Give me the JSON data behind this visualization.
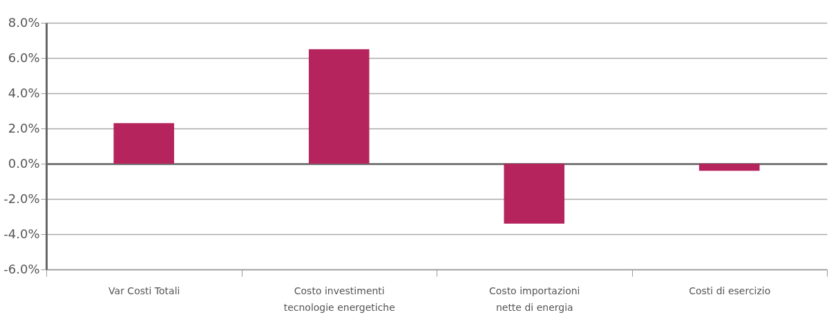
{
  "chart_data": {
    "type": "bar",
    "categories": [
      "Var Costi Totali",
      "Costo investimenti tecnologie energetiche",
      "Costo importazioni nette di energia",
      "Costi di esercizio"
    ],
    "values": [
      2.3,
      6.5,
      -3.4,
      -0.4
    ],
    "color": "#b5245c",
    "ylim": [
      -6,
      8
    ],
    "yticks": [
      {
        "value": -6,
        "label": "-6.0%"
      },
      {
        "value": -4,
        "label": "-4.0%"
      },
      {
        "value": -2,
        "label": "-2.0%"
      },
      {
        "value": 0,
        "label": "0.0%"
      },
      {
        "value": 2,
        "label": "2.0%"
      },
      {
        "value": 4,
        "label": "4.0%"
      },
      {
        "value": 6,
        "label": "6.0%"
      },
      {
        "value": 8,
        "label": "8.0%"
      }
    ],
    "grid": "y"
  }
}
